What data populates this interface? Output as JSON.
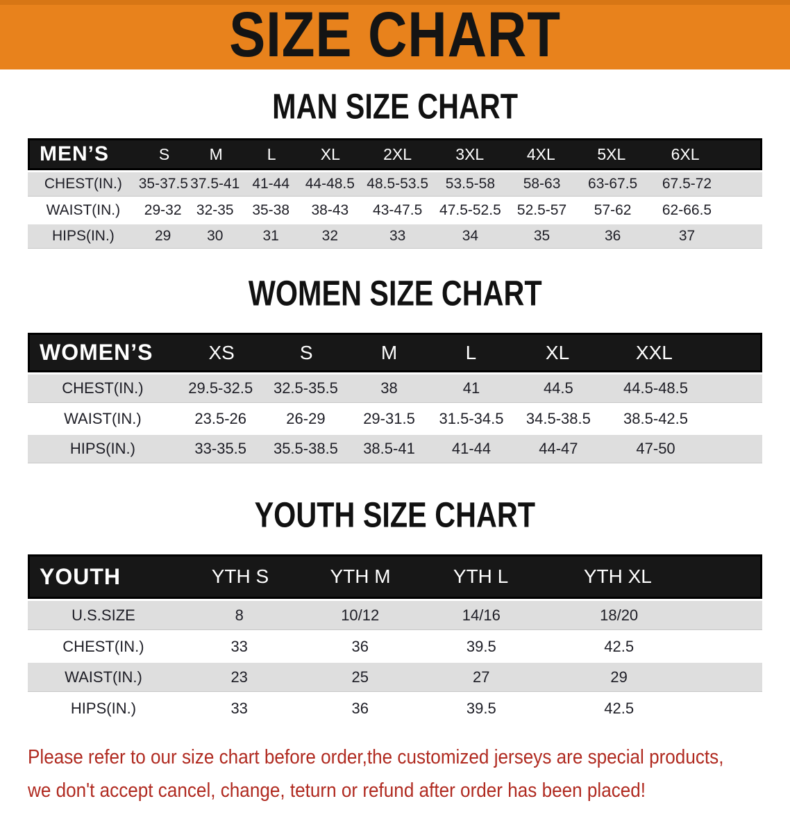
{
  "banner": {
    "title": "SIZE CHART",
    "bg_color": "#E8821C"
  },
  "colors": {
    "header_bar": "#171717",
    "row_alt_gray": "#DEDEDE",
    "notice_red": "#B02A20"
  },
  "sections": [
    {
      "heading": "MAN SIZE CHART",
      "table": {
        "header_label": "MEN’S",
        "columns": [
          "S",
          "M",
          "L",
          "XL",
          "2XL",
          "3XL",
          "4XL",
          "5XL",
          "6XL"
        ],
        "col_widths": [
          "15.1%",
          "6.6%",
          "7.6%",
          "7.6%",
          "8.5%",
          "9.9%",
          "9.9%",
          "9.6%",
          "9.7%",
          "10.5%",
          "5%"
        ],
        "rows": [
          {
            "label": "CHEST(IN.)",
            "values": [
              "35-37.5",
              "37.5-41",
              "41-44",
              "44-48.5",
              "48.5-53.5",
              "53.5-58",
              "58-63",
              "63-67.5",
              "67.5-72"
            ]
          },
          {
            "label": "WAIST(IN.)",
            "values": [
              "29-32",
              "32-35",
              "35-38",
              "38-43",
              "43-47.5",
              "47.5-52.5",
              "52.5-57",
              "57-62",
              "62-66.5"
            ]
          },
          {
            "label": "HIPS(IN.)",
            "values": [
              "29",
              "30",
              "31",
              "32",
              "33",
              "34",
              "35",
              "36",
              "37"
            ]
          }
        ]
      }
    },
    {
      "heading": "WOMEN SIZE CHART",
      "table": {
        "header_label": "WOMEN’S",
        "columns": [
          "XS",
          "S",
          "M",
          "L",
          "XL",
          "XXL"
        ],
        "col_widths": [
          "20.4%",
          "11.7%",
          "11.5%",
          "11.2%",
          "11.2%",
          "12.5%",
          "14%",
          "7.5%"
        ],
        "rows": [
          {
            "label": "CHEST(IN.)",
            "values": [
              "29.5-32.5",
              "32.5-35.5",
              "38",
              "41",
              "44.5",
              "44.5-48.5"
            ]
          },
          {
            "label": "WAIST(IN.)",
            "values": [
              "23.5-26",
              "26-29",
              "29-31.5",
              "31.5-34.5",
              "34.5-38.5",
              "38.5-42.5"
            ]
          },
          {
            "label": "HIPS(IN.)",
            "values": [
              "33-35.5",
              "35.5-38.5",
              "38.5-41",
              "41-44",
              "44-47",
              "47-50"
            ]
          }
        ]
      }
    },
    {
      "heading": "YOUTH SIZE CHART",
      "table": {
        "header_label": "YOUTH",
        "columns": [
          "YTH S",
          "YTH M",
          "YTH L",
          "YTH XL"
        ],
        "col_widths": [
          "20.6%",
          "16.4%",
          "16.5%",
          "16.5%",
          "21%",
          "9%"
        ],
        "rows": [
          {
            "label": "U.S.SIZE",
            "values": [
              "8",
              "10/12",
              "14/16",
              "18/20"
            ]
          },
          {
            "label": "CHEST(IN.)",
            "values": [
              "33",
              "36",
              "39.5",
              "42.5"
            ]
          },
          {
            "label": "WAIST(IN.)",
            "values": [
              "23",
              "25",
              "27",
              "29"
            ]
          },
          {
            "label": "HIPS(IN.)",
            "values": [
              "33",
              "36",
              "39.5",
              "42.5"
            ]
          }
        ]
      }
    }
  ],
  "notice": {
    "color": "#B02A20",
    "lines": [
      "Please refer to our size chart before order,the customized jerseys are special products,",
      "we don't accept cancel, change, teturn or refund after order has been placed!"
    ]
  }
}
